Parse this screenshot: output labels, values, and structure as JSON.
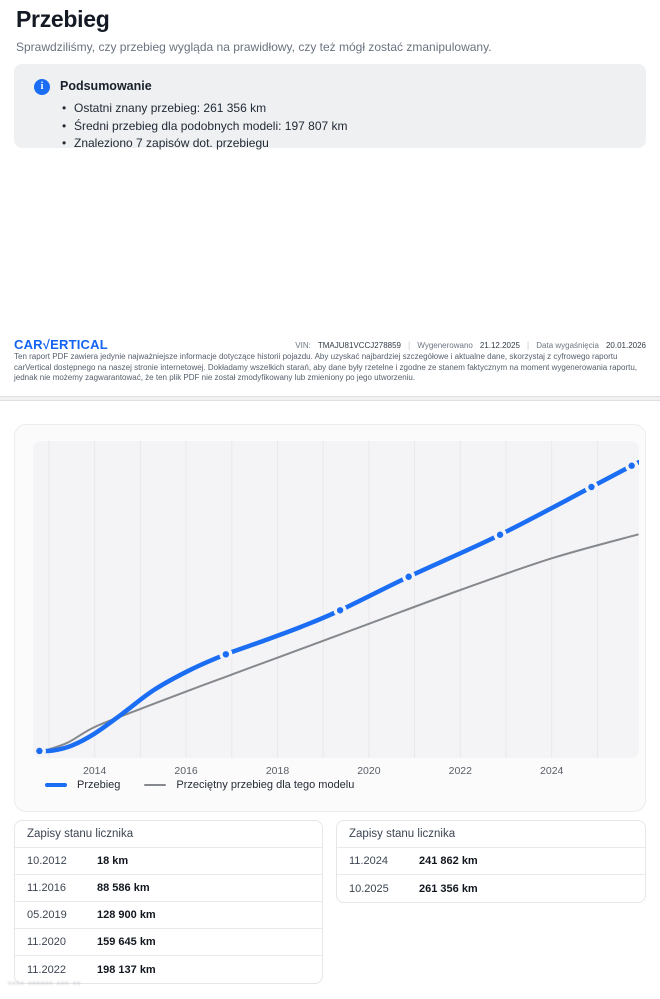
{
  "header": {
    "title": "Przebieg",
    "subtitle": "Sprawdziliśmy, czy przebieg wygląda na prawidłowy, czy też mógł zostać zmanipulowany."
  },
  "summary": {
    "icon": "i",
    "title": "Podsumowanie",
    "bullets": [
      "Ostatni znany przebieg: 261 356 km",
      "Średni przebieg dla podobnych modeli: 197 807 km",
      "Znaleziono 7 zapisów dot. przebiegu"
    ]
  },
  "footer": {
    "logo_left": "CAR",
    "logo_check": "√",
    "logo_right": "ERTICAL",
    "vin_label": "VIN:",
    "vin": "TMAJU81VCCJ278859",
    "generated_label": "Wygenerowano",
    "generated_date": "21.12.2025",
    "expiry_label": "Data wygaśnięcia",
    "expiry_date": "20.01.2026",
    "divider": "|",
    "disclaimer": "Ten raport PDF zawiera jedynie najważniejsze informacje dotyczące historii pojazdu. Aby uzyskać najbardziej szczegółowe i aktualne dane, skorzystaj z cyfrowego raportu carVertical dostępnego na naszej stronie internetowej. Dokładamy wszelkich starań, aby dane były rzetelne i zgodne ze stanem faktycznym na moment wygenerowania raportu, jednak nie możemy zagwarantować, że ten plik PDF nie został zmodyfikowany lub zmieniony po jego utworzeniu."
  },
  "chart_data": {
    "type": "line",
    "xlim": [
      2012.65,
      2025.91
    ],
    "ylim": [
      0,
      284000
    ],
    "grid_years": [
      2013,
      2014,
      2015,
      2016,
      2017,
      2018,
      2019,
      2020,
      2021,
      2022,
      2023,
      2024,
      2025
    ],
    "ticks": [
      {
        "label": "2014",
        "x": 2014
      },
      {
        "label": "2016",
        "x": 2016
      },
      {
        "label": "2018",
        "x": 2018
      },
      {
        "label": "2020",
        "x": 2020
      },
      {
        "label": "2022",
        "x": 2022
      },
      {
        "label": "2024",
        "x": 2024
      }
    ],
    "records": [
      {
        "date": "10.2012",
        "x": 2012.79,
        "km": 18
      },
      {
        "date": "11.2016",
        "x": 2016.87,
        "km": 88586
      },
      {
        "date": "05.2019",
        "x": 2019.37,
        "km": 128900
      },
      {
        "date": "11.2020",
        "x": 2020.87,
        "km": 159645
      },
      {
        "date": "11.2022",
        "x": 2022.87,
        "km": 198137
      },
      {
        "date": "11.2024",
        "x": 2024.87,
        "km": 241862
      },
      {
        "date": "10.2025",
        "x": 2025.75,
        "km": 261356
      }
    ],
    "series": [
      {
        "name": "Przebieg",
        "points": [
          [
            2012.79,
            18
          ],
          [
            2013.1,
            500
          ],
          [
            2013.5,
            5000
          ],
          [
            2014.0,
            16000
          ],
          [
            2014.6,
            34000
          ],
          [
            2015.3,
            56000
          ],
          [
            2016.1,
            74500
          ],
          [
            2016.87,
            88586
          ],
          [
            2017.6,
            99500
          ],
          [
            2018.5,
            113500
          ],
          [
            2019.37,
            128900
          ],
          [
            2020.87,
            159645
          ],
          [
            2022.87,
            198137
          ],
          [
            2024.87,
            241862
          ],
          [
            2025.75,
            261356
          ],
          [
            2025.93,
            264800
          ]
        ]
      },
      {
        "name": "Przeciętny przebieg dla tego modelu",
        "points": [
          [
            2012.88,
            0
          ],
          [
            2013.4,
            7500
          ],
          [
            2014.0,
            22000
          ],
          [
            2015.0,
            38500
          ],
          [
            2016.0,
            54500
          ],
          [
            2016.87,
            68000
          ],
          [
            2018.0,
            85500
          ],
          [
            2020.0,
            116500
          ],
          [
            2022.0,
            147500
          ],
          [
            2024.0,
            176500
          ],
          [
            2025.9,
            198500
          ]
        ]
      }
    ],
    "legend": [
      "Przebieg",
      "Przeciętny przebieg dla tego modelu"
    ],
    "legend_position": "bottom-left",
    "grid": "vertical-yearly",
    "colors": {
      "mileage": "#1b6ef3",
      "average": "#85888d",
      "grid": "#e9e9ec",
      "plot_bg": "#f4f4f6"
    }
  },
  "tables": [
    {
      "title": "Zapisy stanu licznika",
      "rows": [
        [
          "10.2012",
          "18 km"
        ],
        [
          "11.2016",
          "88 586 km"
        ],
        [
          "05.2019",
          "128 900 km"
        ],
        [
          "11.2020",
          "159 645 km"
        ],
        [
          "11.2022",
          "198 137 km"
        ]
      ]
    },
    {
      "title": "Zapisy stanu licznika",
      "rows": [
        [
          "11.2024",
          "241 862 km"
        ],
        [
          "10.2025",
          "261 356 km"
        ]
      ]
    }
  ],
  "artifact": {
    "text": "▪▪▪▪ ▪▪▪▪▪▪ ▪▪▪ ▪▪"
  },
  "colors": {
    "brand_blue": "#1464f4",
    "accent_blue": "#1b6ef3",
    "summary_bg": "#eef0f2",
    "card_bg": "#fbfbfc",
    "text_dark": "#141a24",
    "text_gray": "#6b7380"
  }
}
